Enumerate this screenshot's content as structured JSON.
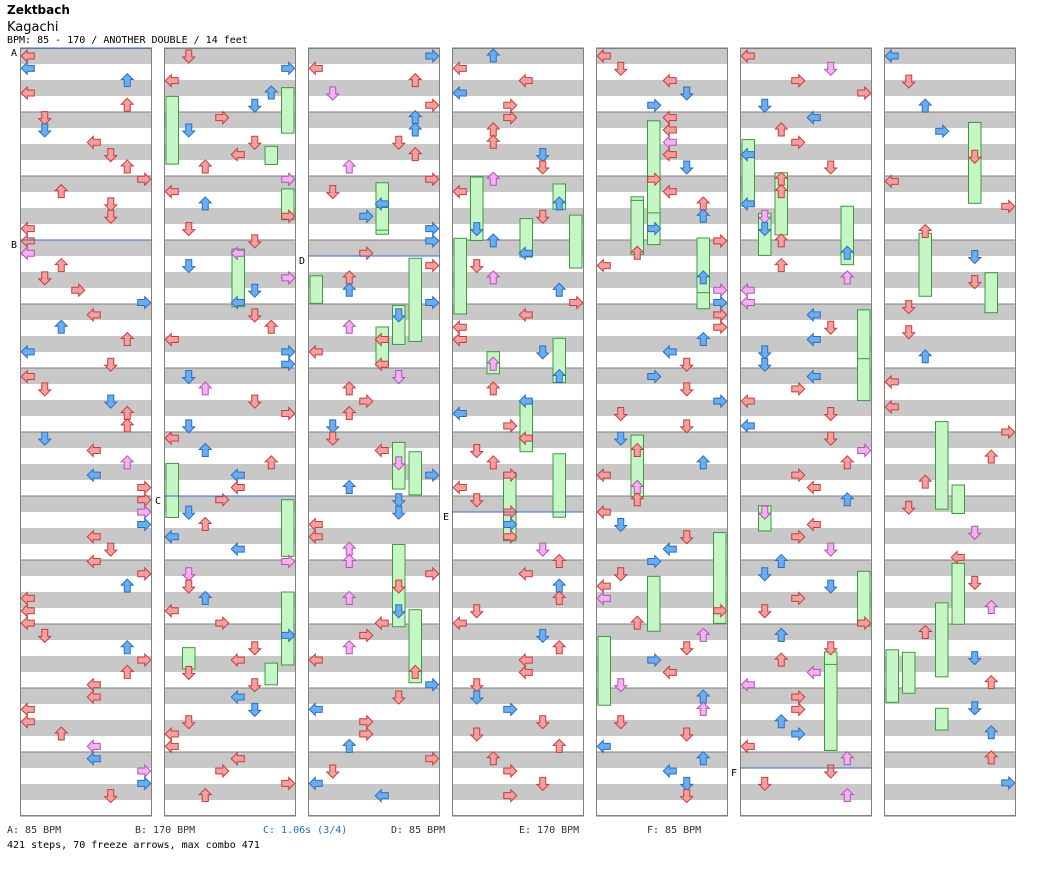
{
  "header": {
    "artist": "Zektbach",
    "title": "Kagachi",
    "meta": "BPM: 85 - 170 / ANOTHER DOUBLE / 14 feet"
  },
  "legend": [
    {
      "label": "A: 85 BPM"
    },
    {
      "label": "B: 170 BPM"
    },
    {
      "label": "C: 1.06s (3/4)",
      "highlight": true
    },
    {
      "label": "D: 85 BPM"
    },
    {
      "label": "E: 170 BPM"
    },
    {
      "label": "F: 85 BPM"
    }
  ],
  "summary": "421 steps, 70 freeze arrows, max combo 471",
  "colors": {
    "red": "#f3a0a0",
    "red_stroke": "#c83c3c",
    "blue": "#6aaef0",
    "blue_stroke": "#2a6ec0",
    "pink": "#f2b3f2",
    "pink_stroke": "#b450b4",
    "freeze": "#c6f5c6",
    "freeze_stroke": "#3c9b3c",
    "stripe": "#c8c8c8",
    "bpm_line": "#3c6ec8"
  },
  "chart_data": {
    "type": "step-chart",
    "mode": "double",
    "lanes": 8,
    "columns": 7,
    "measures_per_column": 12,
    "total_measures": 84,
    "bpm_markers": [
      {
        "id": "A",
        "measure": 0
      },
      {
        "id": "B",
        "measure": 3
      },
      {
        "id": "C",
        "measure": 19
      },
      {
        "id": "D",
        "measure": 27.25
      },
      {
        "id": "E",
        "measure": 43.25
      },
      {
        "id": "F",
        "measure": 71.25
      }
    ],
    "steps": 421,
    "freeze_arrows": 70,
    "max_combo": 471
  }
}
